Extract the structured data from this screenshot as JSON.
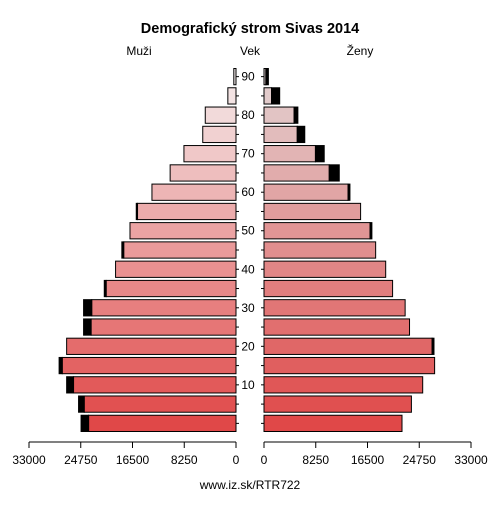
{
  "chart_data": {
    "type": "bar",
    "title": "Demografický strom Sivas 2014",
    "left_label": "Muži",
    "center_label": "Vek",
    "right_label": "Ženy",
    "footer": "www.iz.sk/RTR722",
    "age_groups": [
      "0-4",
      "5-9",
      "10-14",
      "15-19",
      "20-24",
      "25-29",
      "30-34",
      "35-39",
      "40-44",
      "45-49",
      "50-54",
      "55-59",
      "60-64",
      "65-69",
      "70-74",
      "75-79",
      "80-84",
      "85-89",
      "90+"
    ],
    "age_tick_labels": [
      "90",
      "80",
      "70",
      "60",
      "50",
      "40",
      "30",
      "20",
      "10"
    ],
    "age_tick_values": [
      90,
      80,
      70,
      60,
      50,
      40,
      30,
      20,
      10
    ],
    "x_tick_labels_left": [
      "33000",
      "24750",
      "16500",
      "8250",
      "0"
    ],
    "x_tick_labels_right": [
      "0",
      "8250",
      "16500",
      "24750",
      "33000"
    ],
    "xlim": [
      0,
      33000
    ],
    "series": [
      {
        "name": "Muži",
        "values": [
          23500,
          24200,
          25900,
          27700,
          27000,
          23100,
          23000,
          20700,
          19200,
          17900,
          16900,
          15700,
          13400,
          10500,
          8300,
          5300,
          4900,
          1300,
          350
        ],
        "excess": [
          1200,
          900,
          1100,
          500,
          0,
          1200,
          1300,
          300,
          0,
          300,
          0,
          200,
          0,
          0,
          0,
          0,
          0,
          0,
          0
        ]
      },
      {
        "name": "Ženy",
        "values": [
          22000,
          23500,
          25300,
          27200,
          26800,
          23200,
          22500,
          20500,
          19400,
          17800,
          16900,
          15400,
          13400,
          10400,
          8200,
          5300,
          4800,
          1200,
          300
        ],
        "excess": [
          0,
          0,
          0,
          0,
          300,
          0,
          0,
          0,
          0,
          0,
          300,
          0,
          300,
          1600,
          1400,
          1200,
          600,
          1300,
          400
        ]
      }
    ]
  }
}
